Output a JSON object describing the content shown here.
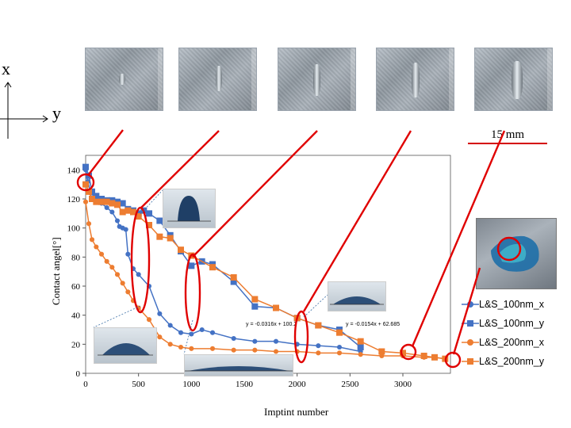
{
  "coordinate_axes": {
    "x_label": "x",
    "y_label": "y"
  },
  "scale_label": "15 mm",
  "fit_equations": [
    "y = -0.0316x + 100.2",
    "y = -0.0154x + 62.685"
  ],
  "colors": {
    "blue": "#4472c4",
    "orange": "#ed7d31",
    "annotation": "#e00000"
  },
  "chart_data": {
    "type": "scatter",
    "xlabel": "Imptint number",
    "ylabel": "Contact angel[°]",
    "xlim": [
      0,
      3450
    ],
    "ylim": [
      0,
      150
    ],
    "x_ticks": [
      0,
      500,
      1000,
      1500,
      2000,
      2500,
      3000
    ],
    "y_ticks": [
      0,
      20,
      40,
      60,
      80,
      100,
      120,
      140
    ],
    "grid": false,
    "legend_position": "right",
    "series": [
      {
        "name": "L&S_100nm_x",
        "color": "#4472c4",
        "marker": "circle",
        "x": [
          0,
          20,
          50,
          100,
          150,
          200,
          250,
          300,
          320,
          350,
          380,
          400,
          450,
          500,
          600,
          700,
          800,
          900,
          1000,
          1100,
          1200,
          1400,
          1600,
          1800,
          2000,
          2200,
          2400,
          2600
        ],
        "y": [
          140,
          132,
          124,
          120,
          117,
          114,
          111,
          105,
          101,
          100,
          99,
          82,
          72,
          68,
          60,
          41,
          33,
          28,
          27,
          30,
          28,
          24,
          22,
          22,
          20,
          19,
          18,
          15
        ],
        "marker_size": 4.5
      },
      {
        "name": "L&S_100nm_y",
        "color": "#4472c4",
        "marker": "square",
        "x": [
          0,
          30,
          60,
          100,
          150,
          200,
          250,
          300,
          350,
          400,
          450,
          500,
          550,
          600,
          700,
          800,
          900,
          1000,
          1100,
          1200,
          1400,
          1600,
          1800,
          2000,
          2200,
          2400,
          2600
        ],
        "y": [
          142,
          136,
          125,
          122,
          120,
          119,
          119,
          118,
          117,
          113,
          112,
          110,
          112,
          110,
          105,
          95,
          84,
          74,
          77,
          75,
          63,
          46,
          45,
          38,
          33,
          30,
          18
        ],
        "marker_size": 6
      },
      {
        "name": "L&S_200nm_x",
        "color": "#ed7d31",
        "marker": "circle",
        "x": [
          0,
          30,
          60,
          100,
          150,
          200,
          250,
          300,
          350,
          400,
          450,
          500,
          600,
          700,
          800,
          900,
          1000,
          1200,
          1400,
          1600,
          1800,
          2000,
          2200,
          2400,
          2600,
          2800,
          3000,
          3200,
          3300,
          3400
        ],
        "y": [
          118,
          103,
          92,
          87,
          82,
          77,
          73,
          68,
          62,
          56,
          50,
          45,
          37,
          25,
          20,
          18,
          17,
          17,
          16,
          16,
          15,
          15,
          14,
          14,
          13,
          12,
          12,
          11,
          11,
          10
        ],
        "marker_size": 4.5
      },
      {
        "name": "L&S_200nm_y",
        "color": "#ed7d31",
        "marker": "square",
        "x": [
          0,
          30,
          60,
          100,
          150,
          200,
          250,
          300,
          350,
          400,
          450,
          500,
          600,
          700,
          800,
          900,
          1000,
          1200,
          1400,
          1600,
          1800,
          2000,
          2200,
          2400,
          2600,
          2800,
          3000,
          3200,
          3300,
          3400
        ],
        "y": [
          130,
          125,
          120,
          118,
          118,
          118,
          117,
          116,
          111,
          112,
          111,
          108,
          102,
          94,
          93,
          85,
          81,
          73,
          66,
          51,
          45,
          38,
          33,
          28,
          22,
          15,
          14,
          12,
          11,
          10
        ],
        "marker_size": 6
      }
    ]
  }
}
